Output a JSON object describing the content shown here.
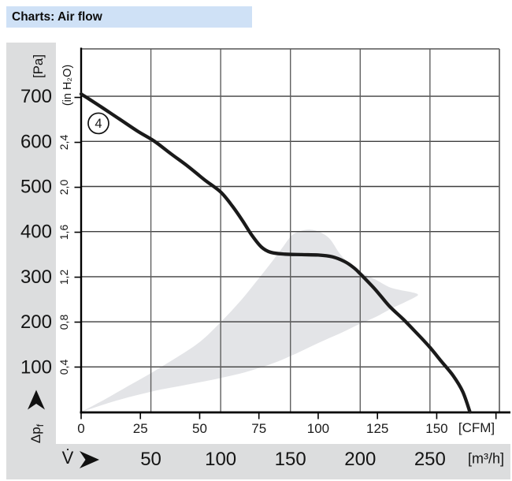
{
  "title_bar": {
    "text": "Charts: Air flow",
    "bg_color": "#cfe1f6"
  },
  "y_axis": {
    "unit_primary": "[Pa]",
    "unit_secondary": "(in H₂O)",
    "pa_labels": [
      700,
      600,
      500,
      400,
      300,
      200,
      100
    ],
    "inh2o_labels": [
      "0,4",
      "0,8",
      "1,2",
      "1,6",
      "2,0",
      "2,4"
    ],
    "inh2o_values": [
      0.4,
      0.8,
      1.2,
      1.6,
      2.0,
      2.4
    ],
    "inh2o_extra_tick_values": [
      2.8
    ],
    "pressure_symbol": "Δp",
    "pressure_symbol_sub": "f"
  },
  "x_axis": {
    "unit_primary": "[CFM]",
    "cfm_labels": [
      0,
      25,
      50,
      75,
      100,
      125,
      150
    ],
    "cfm_extra_tick": 175,
    "unit_secondary": "[m³/h]",
    "m3h_labels": [
      50,
      100,
      150,
      200,
      250
    ],
    "flow_symbol": "V̇"
  },
  "colors": {
    "band_gray": "#dcddde",
    "region_gray": "#e3e4e7",
    "curve_black": "#1a1a1a",
    "grid_dark": "#3f3f3f",
    "grid_mid": "#5f5f5f"
  },
  "chart_data": {
    "type": "line",
    "title": "Charts: Air flow",
    "xlabel_primary": "[CFM]",
    "xlabel_secondary": "[m³/h]",
    "ylabel_primary": "[Pa]",
    "ylabel_secondary": "(in H₂O)",
    "x_range_cfm": [
      0,
      176
    ],
    "y_range_pa": [
      0,
      800
    ],
    "x_gridlines_m3h": [
      50,
      100,
      150,
      200,
      250
    ],
    "y_gridlines_pa": [
      100,
      200,
      300,
      400,
      500,
      600,
      700
    ],
    "unit_conversion": {
      "m3h_per_cfm": 1.699,
      "pa_per_inh2o": 249.1
    },
    "grid": true,
    "series": [
      {
        "name": "4",
        "marker_label": "4",
        "marker_at_cfm_pa": [
          7.3,
          640
        ],
        "points_cfm_pa": [
          [
            0,
            705
          ],
          [
            8,
            678
          ],
          [
            16,
            650
          ],
          [
            24,
            622
          ],
          [
            31,
            600
          ],
          [
            38,
            572
          ],
          [
            45,
            545
          ],
          [
            52,
            515
          ],
          [
            59,
            487
          ],
          [
            64,
            455
          ],
          [
            68,
            425
          ],
          [
            72,
            392
          ],
          [
            76,
            366
          ],
          [
            80,
            354
          ],
          [
            86,
            350
          ],
          [
            93,
            349
          ],
          [
            100,
            348
          ],
          [
            106,
            344
          ],
          [
            111,
            334
          ],
          [
            115,
            320
          ],
          [
            118,
            305
          ],
          [
            124,
            272
          ],
          [
            130,
            235
          ],
          [
            136,
            205
          ],
          [
            141,
            178
          ],
          [
            147,
            144
          ],
          [
            152,
            112
          ],
          [
            157,
            80
          ],
          [
            161,
            45
          ],
          [
            164,
            0
          ]
        ]
      }
    ],
    "operating_region_cfm_pa": [
      [
        0,
        0
      ],
      [
        10,
        28
      ],
      [
        20,
        58
      ],
      [
        30,
        88
      ],
      [
        40,
        120
      ],
      [
        50,
        155
      ],
      [
        59,
        200
      ],
      [
        67,
        245
      ],
      [
        74,
        290
      ],
      [
        80,
        330
      ],
      [
        85,
        365
      ],
      [
        89,
        392
      ],
      [
        93,
        402
      ],
      [
        97,
        404
      ],
      [
        101,
        398
      ],
      [
        105,
        383
      ],
      [
        109,
        352
      ],
      [
        113,
        330
      ],
      [
        118,
        310
      ],
      [
        124,
        294
      ],
      [
        130,
        277
      ],
      [
        135,
        270
      ],
      [
        139,
        266
      ],
      [
        142,
        261
      ],
      [
        141,
        255
      ],
      [
        136,
        242
      ],
      [
        130,
        227
      ],
      [
        124,
        210
      ],
      [
        117,
        194
      ],
      [
        110,
        176
      ],
      [
        103,
        160
      ],
      [
        96,
        143
      ],
      [
        90,
        128
      ],
      [
        83,
        112
      ],
      [
        76,
        99
      ],
      [
        69,
        88
      ],
      [
        62,
        79
      ],
      [
        55,
        71
      ],
      [
        47,
        63
      ],
      [
        40,
        56
      ],
      [
        32,
        48
      ],
      [
        24,
        38
      ],
      [
        16,
        27
      ],
      [
        8,
        14
      ],
      [
        0,
        0
      ]
    ]
  }
}
